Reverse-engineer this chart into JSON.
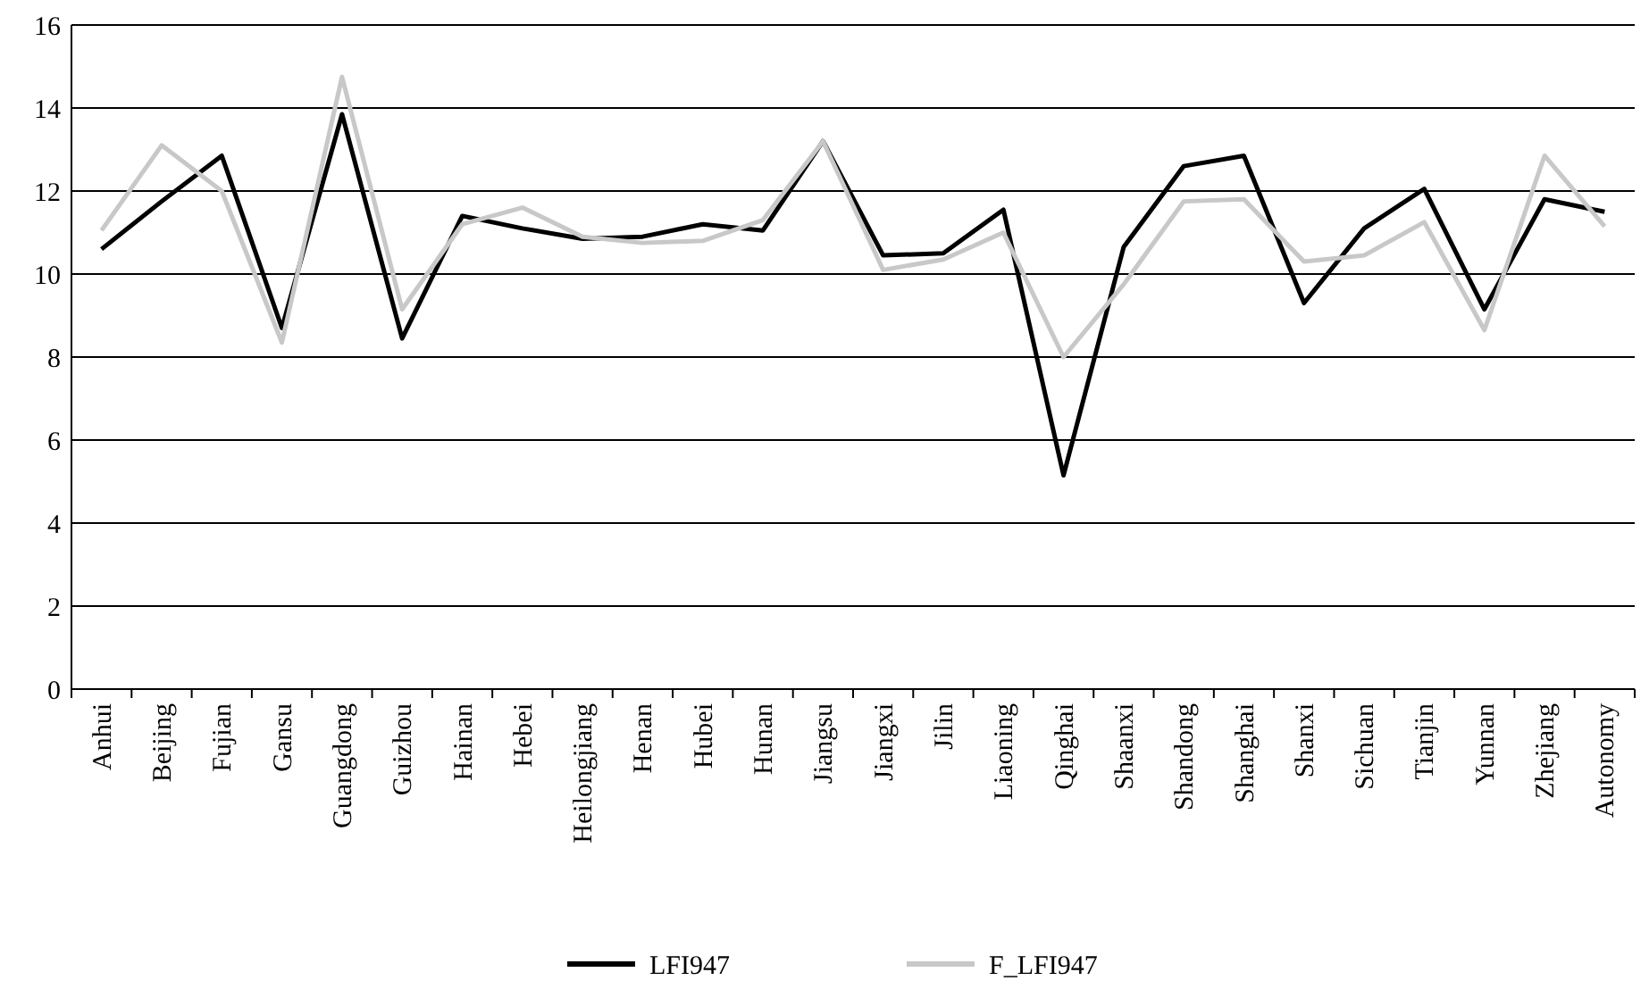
{
  "chart_data": {
    "type": "line",
    "categories": [
      "Anhui",
      "Beijing",
      "Fujian",
      "Gansu",
      "Guangdong",
      "Guizhou",
      "Hainan",
      "Hebei",
      "Heilongjiang",
      "Henan",
      "Hubei",
      "Hunan",
      "Jiangsu",
      "Jiangxi",
      "Jilin",
      "Liaoning",
      "Qinghai",
      "Shaanxi",
      "Shandong",
      "Shanghai",
      "Shanxi",
      "Sichuan",
      "Tianjin",
      "Yunnan",
      "Zhejiang",
      "Autonomy"
    ],
    "series": [
      {
        "name": "LFI947",
        "color": "#000000",
        "values": [
          10.6,
          11.75,
          12.85,
          8.7,
          13.85,
          8.45,
          11.4,
          11.1,
          10.85,
          10.9,
          11.2,
          11.05,
          13.2,
          10.45,
          10.5,
          11.55,
          5.15,
          10.65,
          12.6,
          12.85,
          9.3,
          11.1,
          12.05,
          9.15,
          11.8,
          11.5
        ]
      },
      {
        "name": "F_LFI947",
        "color": "#c8c8c8",
        "values": [
          11.05,
          13.1,
          12.0,
          8.35,
          14.75,
          9.15,
          11.2,
          11.6,
          10.9,
          10.75,
          10.8,
          11.3,
          13.2,
          10.1,
          10.35,
          11.0,
          8.0,
          9.75,
          11.75,
          11.8,
          10.3,
          10.45,
          11.25,
          8.65,
          12.85,
          11.15
        ]
      }
    ],
    "ylim": [
      0,
      16
    ],
    "yticks": [
      0,
      2,
      4,
      6,
      8,
      10,
      12,
      14,
      16
    ],
    "grid": "y",
    "legend": "bottom",
    "marker": "none",
    "line_style": "solid"
  }
}
